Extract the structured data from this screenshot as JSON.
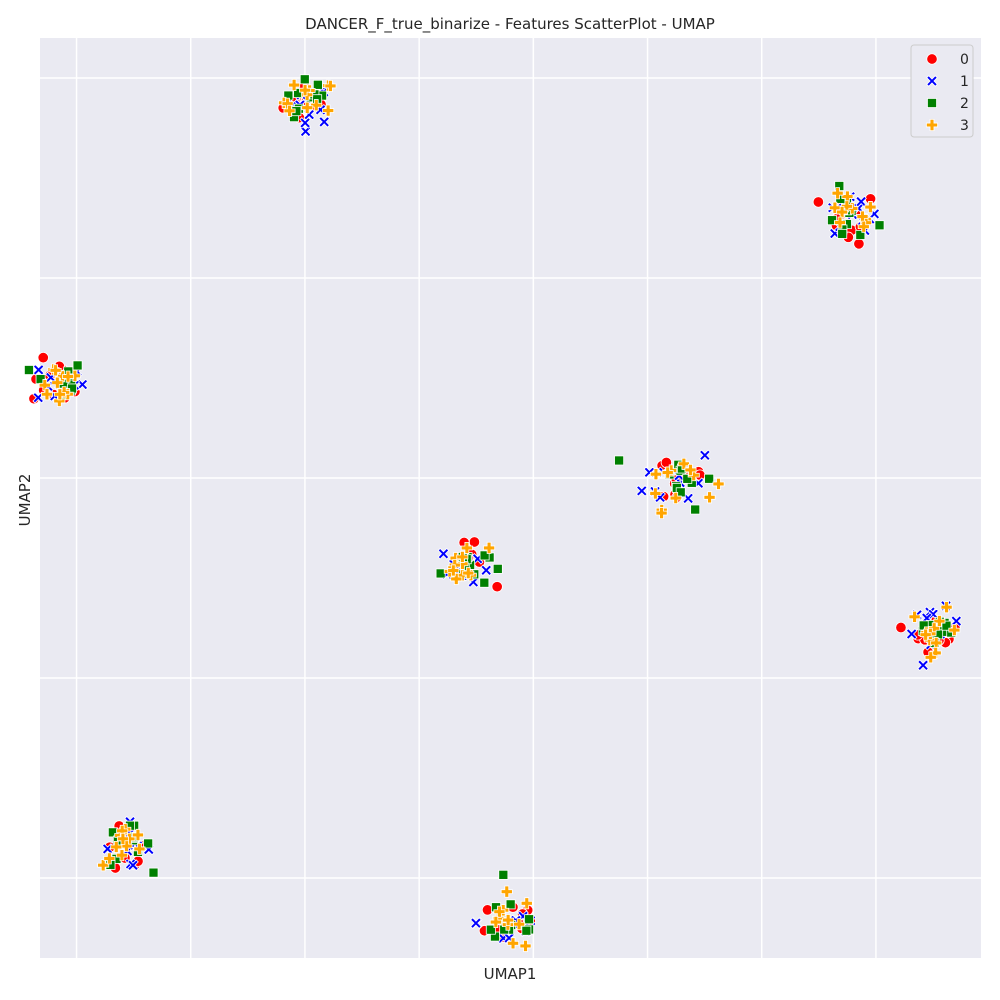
{
  "chart_data": {
    "type": "scatter",
    "title": "DANCER_F_true_binarize - Features ScatterPlot - UMAP",
    "xlabel": "UMAP1",
    "ylabel": "UMAP2",
    "xlim": [
      -3.3,
      17.3
    ],
    "ylim": [
      -17.0,
      6.0
    ],
    "tick_labels_visible": false,
    "grid": true,
    "legend_position": "top-right",
    "background_color": "#eaeaf2",
    "grid_color": "#ffffff",
    "series": [
      {
        "name": "0",
        "color": "#ff0000",
        "marker": "circle"
      },
      {
        "name": "1",
        "color": "#0000ff",
        "marker": "x"
      },
      {
        "name": "2",
        "color": "#008000",
        "marker": "square"
      },
      {
        "name": "3",
        "color": "#ffa500",
        "marker": "plus"
      }
    ],
    "clusters": [
      {
        "x": 2.6,
        "y": 4.4,
        "spread": 0.28
      },
      {
        "x": 14.4,
        "y": 1.5,
        "spread": 0.32
      },
      {
        "x": -2.9,
        "y": -2.6,
        "spread": 0.28
      },
      {
        "x": 10.7,
        "y": -5.0,
        "spread": 0.38
      },
      {
        "x": 6.0,
        "y": -7.2,
        "spread": 0.26
      },
      {
        "x": 16.3,
        "y": -8.8,
        "spread": 0.26
      },
      {
        "x": -1.4,
        "y": -14.2,
        "spread": 0.26
      },
      {
        "x": 7.0,
        "y": -16.1,
        "spread": 0.36
      }
    ]
  }
}
